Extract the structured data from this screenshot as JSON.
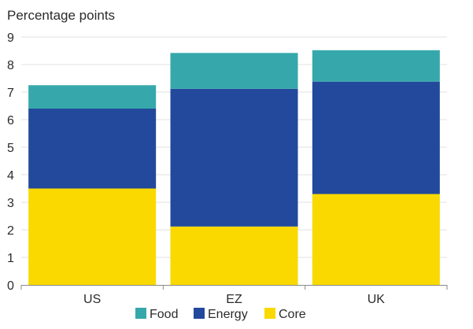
{
  "chart_data": {
    "type": "bar",
    "stacked": true,
    "title": "",
    "xlabel": "",
    "ylabel": "Percentage points",
    "ylim": [
      0,
      9
    ],
    "yticks": [
      0,
      1,
      2,
      3,
      4,
      5,
      6,
      7,
      8,
      9
    ],
    "grid": true,
    "legend_position": "bottom",
    "categories": [
      "US",
      "EZ",
      "UK"
    ],
    "series": [
      {
        "name": "Core",
        "color": "#f9d900",
        "values": [
          3.5,
          2.12,
          3.3
        ]
      },
      {
        "name": "Energy",
        "color": "#22499b",
        "values": [
          2.9,
          5.0,
          4.08
        ]
      },
      {
        "name": "Food",
        "color": "#36a8ab",
        "values": [
          0.85,
          1.3,
          1.14
        ]
      }
    ],
    "legend_order": [
      "Food",
      "Energy",
      "Core"
    ]
  }
}
